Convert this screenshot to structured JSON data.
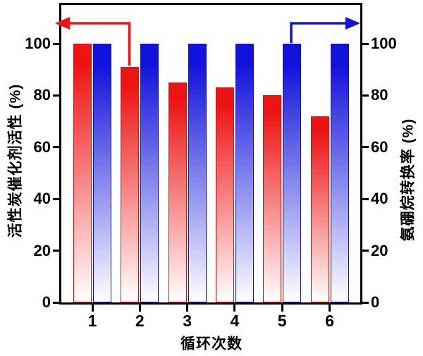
{
  "figure": {
    "title": "",
    "x_title": "循环次数",
    "y_left_title": "活性炭催化剂活性 (%)",
    "y_right_title": "氨硼烷转换率 (%)"
  },
  "colors": {
    "red_series": "#ee1414",
    "blue_series": "#1212dd",
    "red_edge": "#d51010",
    "blue_edge": "#1111bb",
    "axis": "#000000",
    "background": "#ffffff"
  },
  "chart_data": {
    "type": "bar",
    "categories": [
      "1",
      "2",
      "3",
      "4",
      "5",
      "6"
    ],
    "series": [
      {
        "name": "活性炭催化剂活性",
        "axis": "left",
        "color": "#ee1414",
        "values": [
          100,
          91,
          85,
          83,
          80,
          72
        ]
      },
      {
        "name": "氨硼烷转换率",
        "axis": "right",
        "color": "#1212dd",
        "values": [
          100,
          100,
          100,
          100,
          100,
          100
        ]
      }
    ],
    "title": "",
    "xlabel": "循环次数",
    "ylabel_left": "活性炭催化剂活性 (%)",
    "ylabel_right": "氨硼烷转换率 (%)",
    "yticks_left": [
      0,
      20,
      40,
      60,
      80,
      100
    ],
    "yticks_right": [
      0,
      20,
      40,
      60,
      80,
      100
    ],
    "ylim": [
      0,
      115
    ],
    "grid": false,
    "legend": "none",
    "bar_style": "vertical gradient from solid color at top to white at bottom",
    "annotations": [
      {
        "type": "arrow",
        "color": "#ee1414",
        "from": "top of red bar at cycle 2",
        "points_to": "left axis",
        "direction": "left"
      },
      {
        "type": "arrow",
        "color": "#1212dd",
        "from": "top of blue bar at cycle 5",
        "points_to": "right axis",
        "direction": "right"
      }
    ]
  }
}
